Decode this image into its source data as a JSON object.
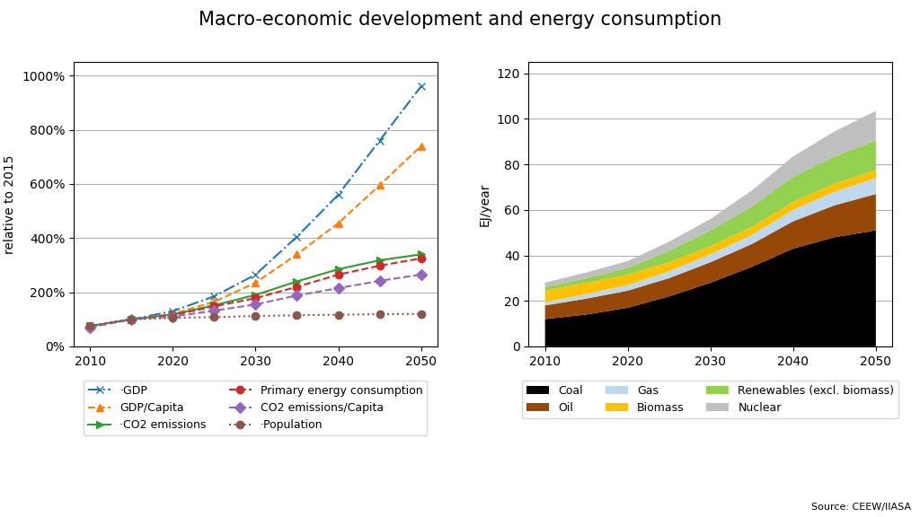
{
  "title": "Macro-economic development and energy consumption",
  "annotation": "Source: CEEW/IIASA",
  "chart_data": [
    {
      "type": "line",
      "x": [
        2010,
        2015,
        2020,
        2025,
        2030,
        2035,
        2040,
        2045,
        2050
      ],
      "y_label": "relative to 2015",
      "xlim": [
        2008,
        2052
      ],
      "xticks": [
        2010,
        2020,
        2030,
        2040,
        2050
      ],
      "ylim": [
        0,
        1050
      ],
      "yticks": [
        {
          "value": 0,
          "label": "0%"
        },
        {
          "value": 200,
          "label": "200%"
        },
        {
          "value": 400,
          "label": "400%"
        },
        {
          "value": 600,
          "label": "600%"
        },
        {
          "value": 800,
          "label": "800%"
        },
        {
          "value": 1000,
          "label": "1000%"
        }
      ],
      "grid": "y",
      "legend": "upper center",
      "series": [
        {
          "name": "·GDP",
          "marker": "x",
          "line_style": "dashdot",
          "values": [
            75,
            100,
            130,
            185,
            265,
            405,
            560,
            760,
            960
          ]
        },
        {
          "name": "GDP/Capita",
          "marker": "triangle_up",
          "line_style": "dashed",
          "values": [
            72,
            100,
            120,
            165,
            235,
            340,
            455,
            595,
            740
          ]
        },
        {
          "name": "·CO2 emissions",
          "marker": "triangle_right",
          "line_style": "solid",
          "values": [
            75,
            100,
            118,
            152,
            190,
            240,
            285,
            318,
            340
          ]
        },
        {
          "name": "Primary energy consumption",
          "marker": "circle",
          "line_style": "dashed",
          "values": [
            74,
            100,
            115,
            148,
            178,
            220,
            265,
            298,
            325
          ]
        },
        {
          "name": "CO2 emissions/Capita",
          "marker": "diamond",
          "line_style": "dashed",
          "values": [
            70,
            100,
            110,
            132,
            155,
            188,
            215,
            242,
            265
          ]
        },
        {
          "name": "·Population",
          "marker": "circle",
          "line_style": "dotted",
          "values": [
            76,
            100,
            105,
            108,
            112,
            115,
            117,
            119,
            120
          ]
        }
      ]
    },
    {
      "type": "area",
      "stacked": true,
      "x": [
        2010,
        2015,
        2020,
        2025,
        2030,
        2035,
        2040,
        2045,
        2050
      ],
      "y_label": "EJ/year",
      "xlim": [
        2008,
        2052
      ],
      "xticks": [
        2010,
        2020,
        2030,
        2040,
        2050
      ],
      "ylim": [
        0,
        125
      ],
      "yticks": [
        0,
        20,
        40,
        60,
        80,
        100,
        120
      ],
      "grid": "y",
      "legend": "upper center",
      "series": [
        {
          "name": "Coal",
          "color": "#000000",
          "values": [
            12,
            14,
            17,
            22,
            28,
            35,
            43,
            48,
            51
          ]
        },
        {
          "name": "Oil",
          "color": "#974706",
          "values": [
            6,
            7,
            7.5,
            8,
            9,
            10,
            12,
            14,
            16
          ]
        },
        {
          "name": "Gas",
          "color": "#bdd7ee",
          "values": [
            1.5,
            2,
            2.5,
            3,
            3.5,
            4,
            5,
            6,
            7
          ]
        },
        {
          "name": "Biomass",
          "color": "#ffc000",
          "values": [
            5,
            5,
            4.5,
            4,
            3.5,
            3.5,
            3.5,
            3.5,
            3.5
          ]
        },
        {
          "name": "Renewables (excl. biomass)",
          "color": "#92d050",
          "values": [
            1.5,
            2,
            3,
            5,
            7,
            9,
            11,
            12,
            13
          ]
        },
        {
          "name": "Nuclear",
          "color": "#bfbfbf",
          "values": [
            2,
            2.5,
            3,
            4,
            5,
            7,
            9,
            11,
            13
          ]
        }
      ]
    }
  ]
}
